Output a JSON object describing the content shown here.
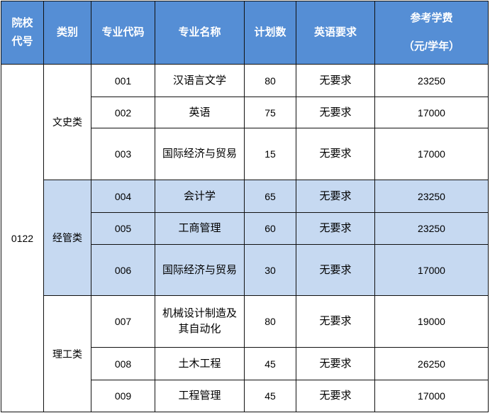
{
  "colors": {
    "header_bg": "#558ed5",
    "highlight_bg": "#c6d9f1"
  },
  "headers": [
    "院校代号",
    "类别",
    "专业代码",
    "专业名称",
    "计划数",
    "英语要求"
  ],
  "fee_header": {
    "line1": "参考学费",
    "line2": "（元/学年）"
  },
  "school_code": "0122",
  "groups": [
    {
      "category": "文史类",
      "rows": [
        {
          "code": "001",
          "name": "汉语言文学",
          "plan": "80",
          "english": "无要求",
          "fee": "23250"
        },
        {
          "code": "002",
          "name": "英语",
          "plan": "75",
          "english": "无要求",
          "fee": "17000"
        },
        {
          "code": "003",
          "name": "国际经济与贸易",
          "plan": "15",
          "english": "无要求",
          "fee": "17000"
        }
      ]
    },
    {
      "category": "经管类",
      "rows": [
        {
          "code": "004",
          "name": "会计学",
          "plan": "65",
          "english": "无要求",
          "fee": "23250"
        },
        {
          "code": "005",
          "name": "工商管理",
          "plan": "60",
          "english": "无要求",
          "fee": "23250"
        },
        {
          "code": "006",
          "name": "国际经济与贸易",
          "plan": "30",
          "english": "无要求",
          "fee": "17000"
        }
      ]
    },
    {
      "category": "理工类",
      "rows": [
        {
          "code": "007",
          "name": "机械设计制造及其自动化",
          "plan": "80",
          "english": "无要求",
          "fee": "19000"
        },
        {
          "code": "008",
          "name": "土木工程",
          "plan": "45",
          "english": "无要求",
          "fee": "26250"
        },
        {
          "code": "009",
          "name": "工程管理",
          "plan": "45",
          "english": "无要求",
          "fee": "17000"
        }
      ]
    }
  ]
}
